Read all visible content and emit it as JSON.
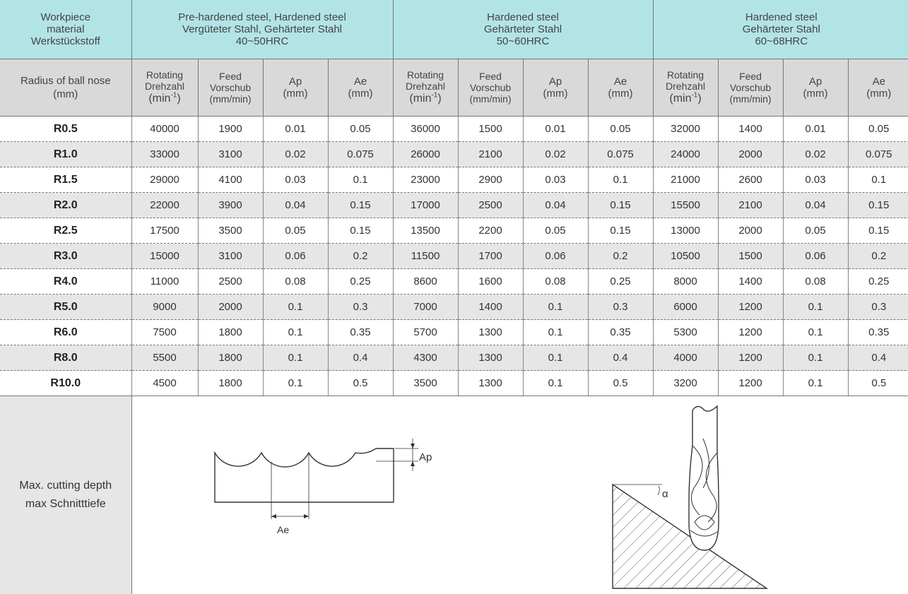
{
  "header": {
    "material_label": [
      "Workpiece",
      "material",
      "Werkstückstoff"
    ],
    "groups": [
      {
        "lines": [
          "Pre-hardened steel, Hardened steel",
          "Vergüteter Stahl, Gehärteter Stahl",
          "40~50HRC"
        ]
      },
      {
        "lines": [
          "Hardened steel",
          "Gehärteter Stahl",
          "50~60HRC"
        ]
      },
      {
        "lines": [
          "Hardened steel",
          "Gehärteter Stahl",
          "60~68HRC"
        ]
      }
    ]
  },
  "subheader": {
    "radius_label": [
      "Radius of ball nose",
      "(mm)"
    ],
    "rotating": [
      "Rotating",
      "Drehzahl",
      "(min",
      "-1",
      ")"
    ],
    "feed": [
      "Feed",
      "Vorschub",
      "(mm/min)"
    ],
    "ap": [
      "Ap",
      "(mm)"
    ],
    "ae": [
      "Ae",
      "(mm)"
    ]
  },
  "rows": [
    {
      "radius": "R0.5",
      "v": [
        "40000",
        "1900",
        "0.01",
        "0.05",
        "36000",
        "1500",
        "0.01",
        "0.05",
        "32000",
        "1400",
        "0.01",
        "0.05"
      ]
    },
    {
      "radius": "R1.0",
      "v": [
        "33000",
        "3100",
        "0.02",
        "0.075",
        "26000",
        "2100",
        "0.02",
        "0.075",
        "24000",
        "2000",
        "0.02",
        "0.075"
      ]
    },
    {
      "radius": "R1.5",
      "v": [
        "29000",
        "4100",
        "0.03",
        "0.1",
        "23000",
        "2900",
        "0.03",
        "0.1",
        "21000",
        "2600",
        "0.03",
        "0.1"
      ]
    },
    {
      "radius": "R2.0",
      "v": [
        "22000",
        "3900",
        "0.04",
        "0.15",
        "17000",
        "2500",
        "0.04",
        "0.15",
        "15500",
        "2100",
        "0.04",
        "0.15"
      ]
    },
    {
      "radius": "R2.5",
      "v": [
        "17500",
        "3500",
        "0.05",
        "0.15",
        "13500",
        "2200",
        "0.05",
        "0.15",
        "13000",
        "2000",
        "0.05",
        "0.15"
      ]
    },
    {
      "radius": "R3.0",
      "v": [
        "15000",
        "3100",
        "0.06",
        "0.2",
        "11500",
        "1700",
        "0.06",
        "0.2",
        "10500",
        "1500",
        "0.06",
        "0.2"
      ]
    },
    {
      "radius": "R4.0",
      "v": [
        "11000",
        "2500",
        "0.08",
        "0.25",
        "8600",
        "1600",
        "0.08",
        "0.25",
        "8000",
        "1400",
        "0.08",
        "0.25"
      ]
    },
    {
      "radius": "R5.0",
      "v": [
        "9000",
        "2000",
        "0.1",
        "0.3",
        "7000",
        "1400",
        "0.1",
        "0.3",
        "6000",
        "1200",
        "0.1",
        "0.3"
      ]
    },
    {
      "radius": "R6.0",
      "v": [
        "7500",
        "1800",
        "0.1",
        "0.35",
        "5700",
        "1300",
        "0.1",
        "0.35",
        "5300",
        "1200",
        "0.1",
        "0.35"
      ]
    },
    {
      "radius": "R8.0",
      "v": [
        "5500",
        "1800",
        "0.1",
        "0.4",
        "4300",
        "1300",
        "0.1",
        "0.4",
        "4000",
        "1200",
        "0.1",
        "0.4"
      ]
    },
    {
      "radius": "R10.0",
      "v": [
        "4500",
        "1800",
        "0.1",
        "0.5",
        "3500",
        "1300",
        "0.1",
        "0.5",
        "3200",
        "1200",
        "0.1",
        "0.5"
      ]
    }
  ],
  "bottom": {
    "label": [
      "Max. cutting depth",
      "max Schnitttiefe"
    ],
    "diagram_ap": "Ap",
    "diagram_ae": "Ae",
    "diagram_alpha": "α"
  },
  "colors": {
    "header_bg": "#b2e4e6",
    "subheader_bg": "#d9d9d9",
    "zebra": "#e6e6e6"
  }
}
